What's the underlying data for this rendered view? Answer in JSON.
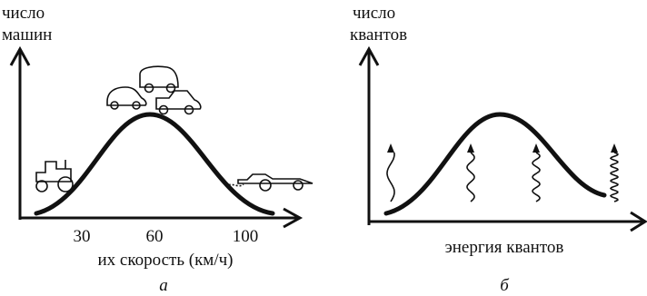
{
  "panels": [
    {
      "y_label": [
        "число",
        "машин"
      ],
      "x_ticks": [
        30,
        60,
        100
      ],
      "x_label": "их скорость (км/ч)",
      "caption": "а"
    },
    {
      "y_label": [
        "число",
        "квантов"
      ],
      "x_label": "энергия квантов",
      "caption": "б"
    }
  ]
}
